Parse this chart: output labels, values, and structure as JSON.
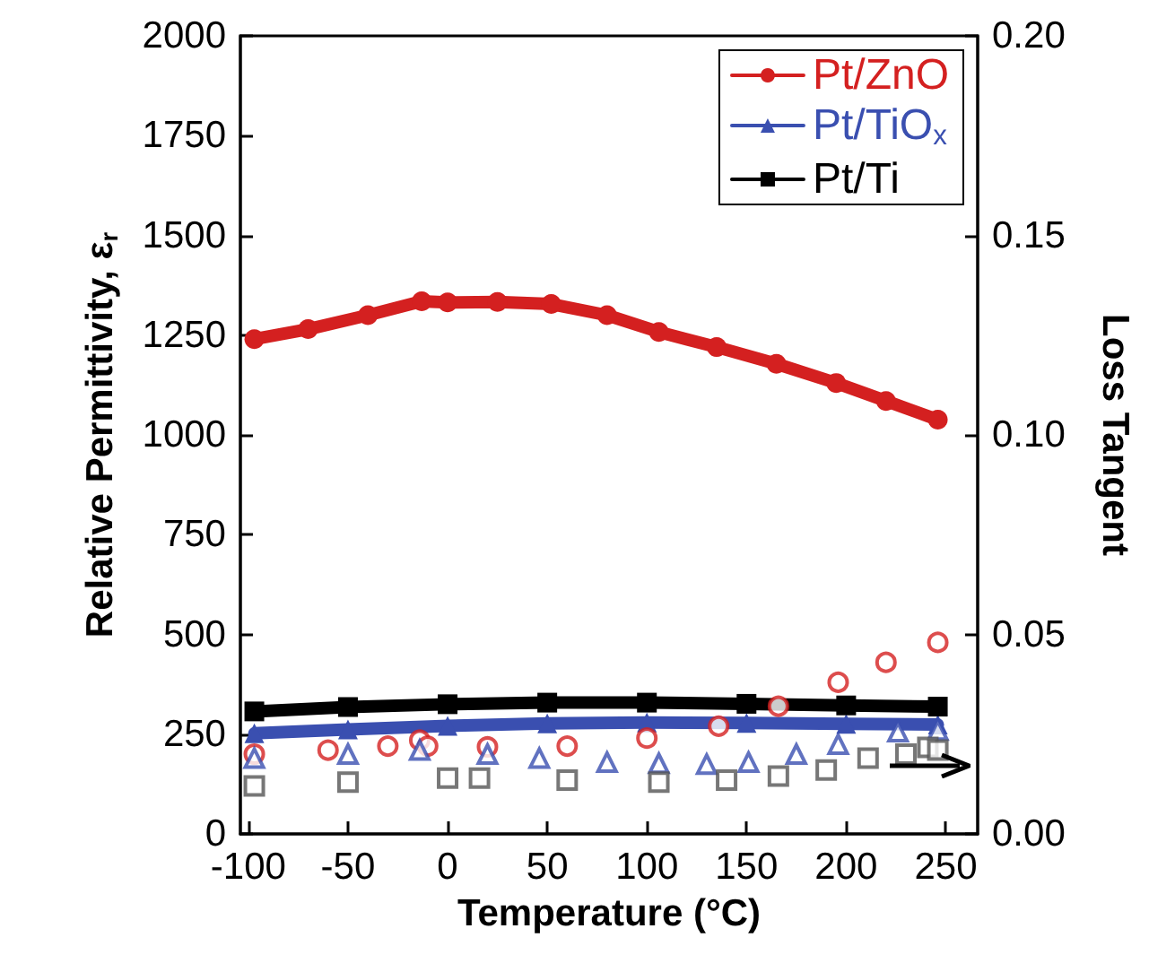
{
  "chart_data": {
    "type": "line",
    "xlabel": "Temperature (°C)",
    "ylabel": "Relative Permittivity, ε$_{r}$",
    "y2label": "Loss Tangent",
    "xlim": [
      -104,
      266
    ],
    "xticks": [
      -100,
      -50,
      0,
      50,
      100,
      150,
      200,
      250
    ],
    "ylim": [
      0,
      2000
    ],
    "yticks": [
      0,
      250,
      500,
      750,
      1000,
      1250,
      1500,
      1750,
      2000
    ],
    "y2lim": [
      0,
      0.2
    ],
    "y2ticks": [
      {
        "value": 0,
        "label": "0.00"
      },
      {
        "value": 0.05,
        "label": "0.05"
      },
      {
        "value": 0.1,
        "label": "0.10"
      },
      {
        "value": 0.15,
        "label": "0.15"
      },
      {
        "value": 0.2,
        "label": "0.20"
      }
    ],
    "legend": "top right",
    "grid": false,
    "series": [
      {
        "name": "Pt/ZnO",
        "color": "#d42020",
        "marker": "circle",
        "x": [
          -97,
          -70,
          -40,
          -13,
          0,
          25,
          52,
          80,
          106,
          135,
          165,
          195,
          220,
          246
        ],
        "values": [
          1240,
          1265,
          1300,
          1335,
          1332,
          1333,
          1328,
          1300,
          1258,
          1220,
          1178,
          1130,
          1085,
          1038
        ]
      },
      {
        "name": "Pt/TiO$_{x}$",
        "color": "#3a4fb0",
        "marker": "triangle",
        "x": [
          -97,
          -50,
          0,
          50,
          100,
          150,
          200,
          246
        ],
        "values": [
          252,
          262,
          271,
          277,
          279,
          278,
          276,
          274
        ]
      },
      {
        "name": "Pt/Ti",
        "color": "#000000",
        "marker": "square",
        "x": [
          -97,
          -50,
          0,
          50,
          100,
          150,
          200,
          246
        ],
        "values": [
          307,
          318,
          325,
          329,
          329,
          326,
          322,
          319
        ]
      },
      {
        "type": "scatter",
        "axis": "y2",
        "color": "#d42020",
        "marker": "circle",
        "x": [
          -97,
          -60,
          -30,
          -14,
          -10,
          20,
          60,
          100,
          136,
          166,
          196,
          220,
          246
        ],
        "values": [
          0.02,
          0.021,
          0.022,
          0.0235,
          0.022,
          0.0218,
          0.022,
          0.024,
          0.027,
          0.032,
          0.038,
          0.043,
          0.048
        ]
      },
      {
        "type": "scatter",
        "axis": "y2",
        "color": "#3a4fb0",
        "marker": "triangle",
        "x": [
          -97,
          -50,
          -14,
          20,
          46,
          80,
          106,
          130,
          151,
          175,
          196,
          226,
          246
        ],
        "values": [
          0.019,
          0.02,
          0.021,
          0.02,
          0.019,
          0.018,
          0.0177,
          0.0175,
          0.018,
          0.02,
          0.0225,
          0.0256,
          0.026
        ]
      },
      {
        "type": "scatter",
        "axis": "y2",
        "color": "#555555",
        "marker": "square",
        "x": [
          -97,
          -50,
          0,
          16,
          60,
          106,
          140,
          166,
          190,
          211,
          230,
          241,
          246
        ],
        "values": [
          0.012,
          0.013,
          0.014,
          0.014,
          0.0135,
          0.013,
          0.0135,
          0.0145,
          0.016,
          0.019,
          0.02,
          0.0217,
          0.021
        ]
      }
    ]
  }
}
